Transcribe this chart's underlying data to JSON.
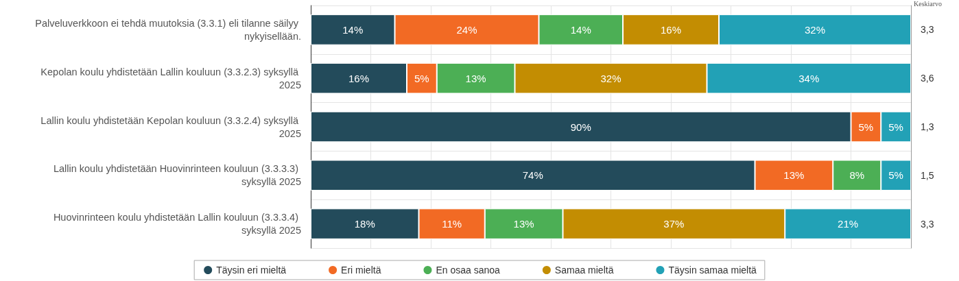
{
  "chart_data": {
    "type": "bar",
    "orientation": "horizontal",
    "stacked": true,
    "categories": [
      "Palveluverkkoon ei tehdä muutoksia (3.3.1) eli tilanne säilyy nykyisellään.",
      "Kepolan koulu yhdistetään Lallin kouluun (3.3.2.3) syksyllä 2025",
      "Lallin koulu yhdistetään Kepolan kouluun (3.3.2.4) syksyllä 2025",
      "Lallin koulu yhdistetään Huovinrinteen kouluun (3.3.3.3) syksyllä 2025",
      "Huovinrinteen koulu yhdistetään Lallin kouluun (3.3.3.4) syksyllä 2025"
    ],
    "series": [
      {
        "name": "Täysin eri mieltä",
        "color": "#234b5b",
        "values": [
          14,
          16,
          90,
          74,
          18
        ],
        "value_labels": [
          "14%",
          "16%",
          "90%",
          "74%",
          "18%"
        ]
      },
      {
        "name": "Eri mieltä",
        "color": "#f26a24",
        "values": [
          24,
          5,
          5,
          13,
          11
        ],
        "value_labels": [
          "24%",
          "5%",
          "5%",
          "13%",
          "11%"
        ]
      },
      {
        "name": "En osaa sanoa",
        "color": "#4caf55",
        "values": [
          14,
          13,
          null,
          8,
          13
        ],
        "value_labels": [
          "14%",
          "13%",
          null,
          "8%",
          "13%"
        ]
      },
      {
        "name": "Samaa mieltä",
        "color": "#c38d02",
        "values": [
          16,
          32,
          null,
          null,
          37
        ],
        "value_labels": [
          "16%",
          "32%",
          null,
          null,
          "37%"
        ]
      },
      {
        "name": "Täysin samaa mieltä",
        "color": "#22a1b6",
        "values": [
          32,
          34,
          5,
          5,
          21
        ],
        "value_labels": [
          "32%",
          "34%",
          "5%",
          "5%",
          "21%"
        ]
      }
    ],
    "xlim": [
      0,
      100
    ],
    "xticks": [
      {
        "value": 0,
        "label": null
      },
      {
        "value": 10,
        "label": null
      },
      {
        "value": 20,
        "label": null
      },
      {
        "value": 30,
        "label": null
      },
      {
        "value": 40,
        "label": null
      },
      {
        "value": 50,
        "label": null
      },
      {
        "value": 60,
        "label": null
      },
      {
        "value": 70,
        "label": null
      },
      {
        "value": 80,
        "label": null
      },
      {
        "value": 90,
        "label": null
      },
      {
        "value": 100,
        "label": null
      }
    ],
    "tick_labels": "y",
    "y2label": "Keskiarvo",
    "annotations": [
      "3,3",
      "3,6",
      "1,3",
      "1,5",
      "3,3"
    ],
    "grid": true,
    "legend": "bottom"
  }
}
